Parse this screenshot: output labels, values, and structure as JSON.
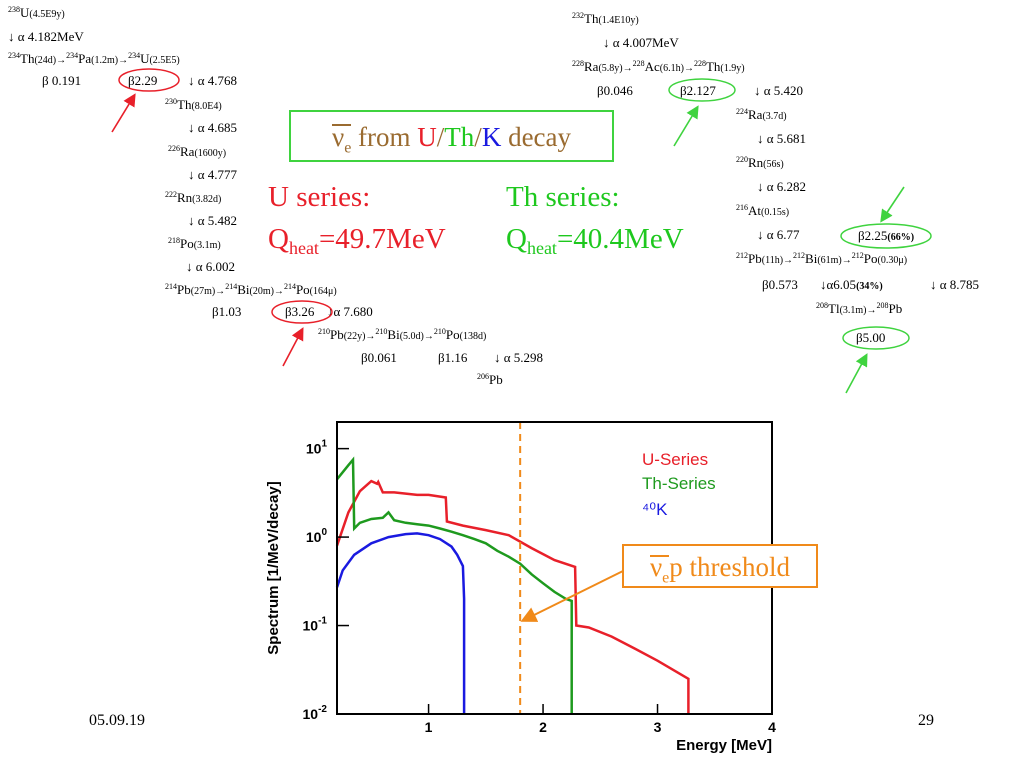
{
  "slide": {
    "date": "05.09.19",
    "page_number": "29"
  },
  "title_box": {
    "nu": "ν",
    "nu_sub": "e",
    "from": " from ",
    "u": "U",
    "slash1": "/",
    "th": "Th",
    "slash2": "/",
    "k": "K",
    "decay": " decay"
  },
  "u_series": {
    "label": "U series:",
    "q": "Q",
    "q_sub": "heat",
    "q_value": "=49.7MeV"
  },
  "th_series": {
    "label": "Th series:",
    "q": "Q",
    "q_sub": "heat",
    "q_value": "=40.4MeV"
  },
  "threshold_box": {
    "nu": "ν",
    "nu_sub": "e",
    "rest": "p threshold"
  },
  "u_chain": {
    "u238_mass": "238",
    "u238": "U",
    "u238_hl": "(4.5E9y)",
    "a1": "↓ α 4.182MeV",
    "th234_mass": "234",
    "th234": "Th",
    "th234_hl": "(24d)→",
    "pa234_mass": "234",
    "pa234": "Pa",
    "pa234_hl": "(1.2m)→",
    "u234_mass": "234",
    "u234": "U",
    "u234_hl": "(2.5E5)",
    "b1": "β 0.191",
    "b2": "β2.29",
    "a2": "↓ α 4.768",
    "th230_mass": "230",
    "th230": "Th",
    "th230_hl": "(8.0E4)",
    "a3": "↓ α 4.685",
    "ra226_mass": "226",
    "ra226": "Ra",
    "ra226_hl": "(1600y)",
    "a4": "↓ α 4.777",
    "rn222_mass": "222",
    "rn222": "Rn",
    "rn222_hl": "(3.82d)",
    "a5": "↓ α 5.482",
    "po218_mass": "218",
    "po218": "Po",
    "po218_hl": "(3.1m)",
    "a6": "↓ α 6.002",
    "pb214_mass": "214",
    "pb214": "Pb",
    "pb214_hl": "(27m)→",
    "bi214_mass": "214",
    "bi214": "Bi",
    "bi214_hl": "(20m)→",
    "po214_mass": "214",
    "po214": "Po",
    "po214_hl": "(164μ)",
    "b3": "β1.03",
    "b4": "β3.26",
    "a7": "↓α 7.680",
    "pb210_mass": "210",
    "pb210": "Pb",
    "pb210_hl": "(22y)→",
    "bi210_mass": "210",
    "bi210": "Bi",
    "bi210_hl": "(5.0d)→",
    "po210_mass": "210",
    "po210": "Po",
    "po210_hl": "(138d)",
    "b5": "β0.061",
    "b6": "β1.16",
    "a8": "↓ α 5.298",
    "pb206_mass": "206",
    "pb206": "Pb"
  },
  "th_chain": {
    "th232_mass": "232",
    "th232": "Th",
    "th232_hl": "(1.4E10y)",
    "a1": "↓ α 4.007MeV",
    "ra228_mass": "228",
    "ra228": "Ra",
    "ra228_hl": "(5.8y)→",
    "ac228_mass": "228",
    "ac228": "Ac",
    "ac228_hl": "(6.1h)→",
    "th228_mass": "228",
    "th228": "Th",
    "th228_hl": "(1.9y)",
    "b1": "β0.046",
    "b2": "β2.127",
    "a2": "↓ α 5.420",
    "ra224_mass": "224",
    "ra224": "Ra",
    "ra224_hl": "(3.7d)",
    "a3": "↓ α 5.681",
    "rn220_mass": "220",
    "rn220": "Rn",
    "rn220_hl": "(56s)",
    "a4": "↓ α 6.282",
    "at216_mass": "216",
    "at216": "At",
    "at216_hl": "(0.15s)",
    "a5": "↓ α 6.77",
    "b3": "β2.25",
    "b3_pct": "(66%)",
    "pb212_mass": "212",
    "pb212": "Pb",
    "pb212_hl": "(11h)→",
    "bi212_mass": "212",
    "bi212": "Bi",
    "bi212_hl": "(61m)→",
    "po212_mass": "212",
    "po212": "Po",
    "po212_hl": "(0.30μ)",
    "b4": "β0.573",
    "a6": "↓α6.05",
    "a6_pct": "(34%)",
    "a7": "↓ α 8.785",
    "tl208_mass": "208",
    "tl208": "Tl",
    "tl208_hl": "(3.1m)→",
    "pb208_mass": "208",
    "pb208": "Pb",
    "b5": "β5.00"
  },
  "colors": {
    "u_series": "#e8202a",
    "th_series": "#1e9a1e",
    "k40": "#1a1ae0",
    "threshold": "#f08a1a",
    "title_frame": "#3fd33f"
  },
  "chart_data": {
    "type": "line",
    "xlabel": "Energy [MeV]",
    "ylabel": "Spectrum [1/MeV/decay]",
    "xlim": [
      0.2,
      4.0
    ],
    "ylim": [
      0.01,
      20
    ],
    "yscale": "log",
    "x_ticks": [
      "1",
      "2",
      "3",
      "4"
    ],
    "y_ticks": [
      {
        "base": "10",
        "exp": "1",
        "value": 10
      },
      {
        "base": "10",
        "exp": "0",
        "value": 1
      },
      {
        "base": "10",
        "exp": "-1",
        "value": 0.1
      },
      {
        "base": "10",
        "exp": "-2",
        "value": 0.01
      }
    ],
    "threshold_mev": 1.8,
    "legend_position": "top-right",
    "series": [
      {
        "name": "U-Series",
        "x": [
          0.2,
          0.3,
          0.4,
          0.5,
          0.55,
          0.56,
          0.6,
          0.7,
          0.8,
          0.9,
          1.0,
          1.15,
          1.16,
          1.3,
          1.5,
          1.7,
          1.9,
          2.1,
          2.28,
          2.29,
          2.4,
          2.6,
          2.8,
          3.0,
          3.27,
          3.27
        ],
        "y": [
          0.8,
          1.9,
          3.3,
          4.3,
          4.0,
          4.2,
          3.2,
          3.2,
          3.1,
          3.0,
          3.0,
          2.8,
          1.5,
          1.35,
          1.2,
          1.05,
          0.75,
          0.55,
          0.46,
          0.1,
          0.095,
          0.075,
          0.055,
          0.04,
          0.025,
          0.01
        ]
      },
      {
        "name": "Th-Series",
        "x": [
          0.2,
          0.3,
          0.34,
          0.35,
          0.4,
          0.5,
          0.6,
          0.65,
          0.7,
          0.8,
          0.9,
          1.0,
          1.1,
          1.2,
          1.3,
          1.4,
          1.5,
          1.6,
          1.7,
          1.8,
          1.9,
          2.0,
          2.1,
          2.2,
          2.25,
          2.25
        ],
        "y": [
          4.5,
          6.5,
          7.5,
          1.25,
          1.45,
          1.6,
          1.65,
          1.9,
          1.55,
          1.45,
          1.4,
          1.35,
          1.25,
          1.15,
          1.05,
          0.95,
          0.85,
          0.7,
          0.6,
          0.5,
          0.38,
          0.3,
          0.24,
          0.2,
          0.19,
          0.01
        ]
      },
      {
        "name": "⁴⁰K",
        "x": [
          0.2,
          0.25,
          0.35,
          0.5,
          0.65,
          0.8,
          0.9,
          1.0,
          1.1,
          1.2,
          1.25,
          1.3,
          1.31,
          1.31
        ],
        "y": [
          0.27,
          0.42,
          0.63,
          0.85,
          1.0,
          1.08,
          1.1,
          1.05,
          0.95,
          0.78,
          0.63,
          0.47,
          0.2,
          0.01
        ]
      }
    ]
  }
}
